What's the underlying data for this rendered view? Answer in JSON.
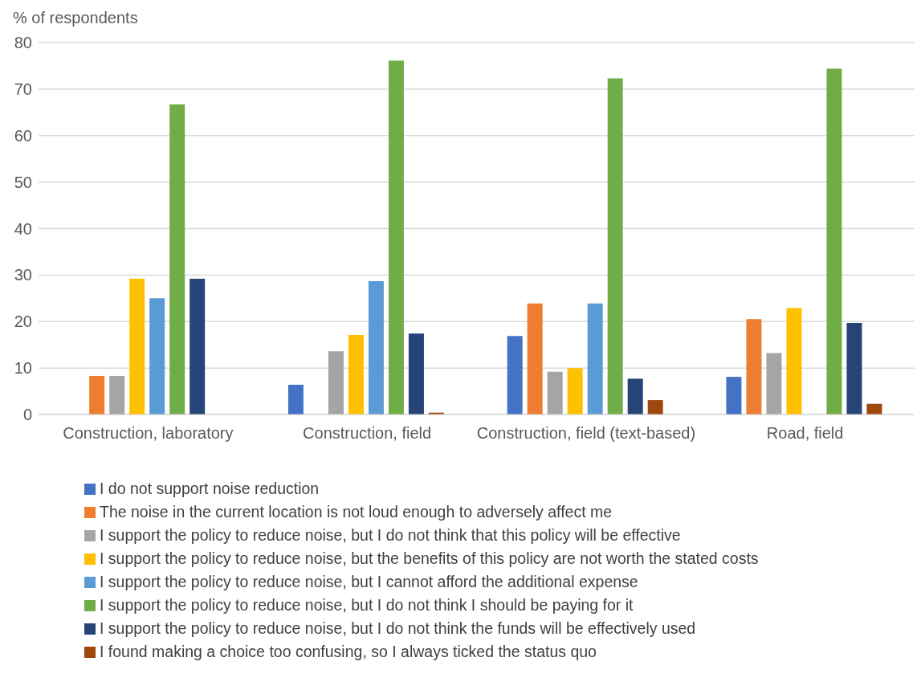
{
  "chart_data": {
    "type": "bar",
    "ylabel": "% of respondents",
    "categories": [
      "Construction, laboratory",
      "Construction, field",
      "Construction, field (text-based)",
      "Road, field"
    ],
    "series": [
      {
        "name": "I do not support noise reduction",
        "color": "#4472c4",
        "values": [
          0,
          6.4,
          16.9,
          8.1
        ]
      },
      {
        "name": "The noise in the current location is not loud enough to adversely affect me",
        "color": "#ed7d31",
        "values": [
          8.3,
          0,
          23.9,
          20.5
        ]
      },
      {
        "name": "I support the policy to reduce noise, but I do not think that this policy will be effective",
        "color": "#a5a5a5",
        "values": [
          8.3,
          13.6,
          9.2,
          13.2
        ]
      },
      {
        "name": "I support the policy to reduce noise, but the benefits of this policy are not worth the stated costs",
        "color": "#ffc000",
        "values": [
          29.2,
          17.1,
          10,
          22.9
        ]
      },
      {
        "name": "I support the policy to reduce noise, but I cannot afford the additional expense",
        "color": "#5b9bd5",
        "values": [
          25,
          28.7,
          23.9,
          0
        ]
      },
      {
        "name": "I support the policy to reduce noise, but I do not think I should be paying for it",
        "color": "#70ad47",
        "values": [
          66.7,
          76.1,
          72.3,
          74.4
        ]
      },
      {
        "name": "I support the policy to reduce noise, but I do not think the funds will be effectively used",
        "color": "#264478",
        "values": [
          29.2,
          17.4,
          7.7,
          19.7
        ]
      },
      {
        "name": "I found making a choice too confusing, so I always ticked the status quo",
        "color": "#9e480e",
        "values": [
          0,
          0.4,
          3.1,
          2.3
        ]
      }
    ],
    "ylim": [
      0,
      80
    ],
    "yticks": [
      0,
      10,
      20,
      30,
      40,
      50,
      60,
      70,
      80
    ],
    "grid": "y",
    "legend": "bottom"
  }
}
